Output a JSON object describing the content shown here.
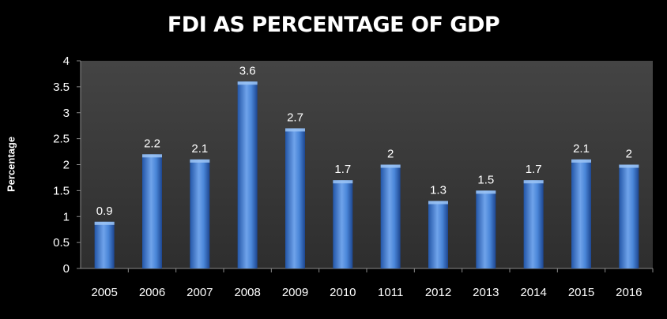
{
  "chart_data": {
    "type": "bar",
    "title": "FDI AS PERCENTAGE OF GDP",
    "xlabel": "",
    "ylabel": "Percentage",
    "ylim": [
      0,
      4
    ],
    "yticks": [
      "0",
      "0.5",
      "1",
      "1.5",
      "2",
      "2.5",
      "3",
      "3.5",
      "4"
    ],
    "categories": [
      "2005",
      "2006",
      "2007",
      "2008",
      "2009",
      "2010",
      "1011",
      "2012",
      "2013",
      "2014",
      "2015",
      "2016"
    ],
    "values": [
      0.9,
      2.2,
      2.1,
      3.6,
      2.7,
      1.7,
      2,
      1.3,
      1.5,
      1.7,
      2.1,
      2
    ],
    "data_labels": [
      "0.9",
      "2.2",
      "2.1",
      "3.6",
      "2.7",
      "1.7",
      "2",
      "1.3",
      "1.5",
      "1.7",
      "2.1",
      "2"
    ],
    "grid": false,
    "legend": "none"
  },
  "colors": {
    "background": "#000000",
    "plot_area": "#3a3a3a",
    "bar_dark": "#1f4e9c",
    "bar_light": "#7fb0f0",
    "text": "#ffffff"
  }
}
